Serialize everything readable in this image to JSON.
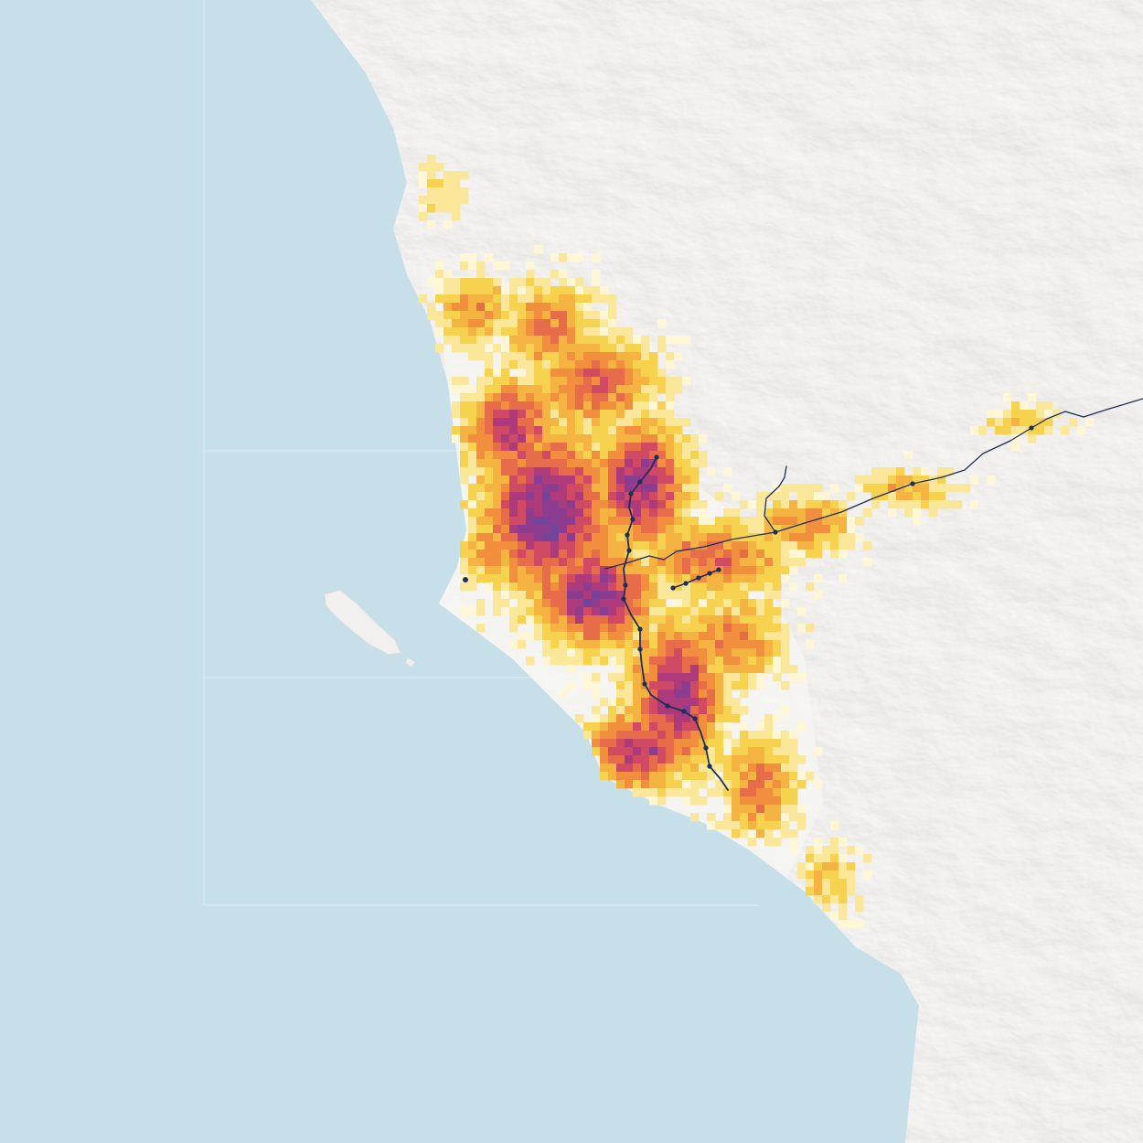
{
  "map": {
    "kind": "population-density-grid",
    "colors": {
      "ocean": "#c6dfe8",
      "land": "#f1f0ee",
      "relief_shadow": "#b9b7b2",
      "relief_highlight": "#ffffff",
      "frame": "#e3eef2",
      "transit_line": "#1e2f55",
      "station": "#1e2f55",
      "density_ramp": [
        "#fff6d6",
        "#fbe79a",
        "#f7d24f",
        "#f5b441",
        "#f28f3f",
        "#e76c49",
        "#cf4a62",
        "#ad3a7a",
        "#8c3d8f",
        "#74449a"
      ]
    },
    "density_scale": {
      "min_level": 1,
      "max_level": 10
    },
    "features": [
      "ocean",
      "coastline",
      "island",
      "shaded-relief",
      "density-grid",
      "transit-lines",
      "stations"
    ]
  }
}
